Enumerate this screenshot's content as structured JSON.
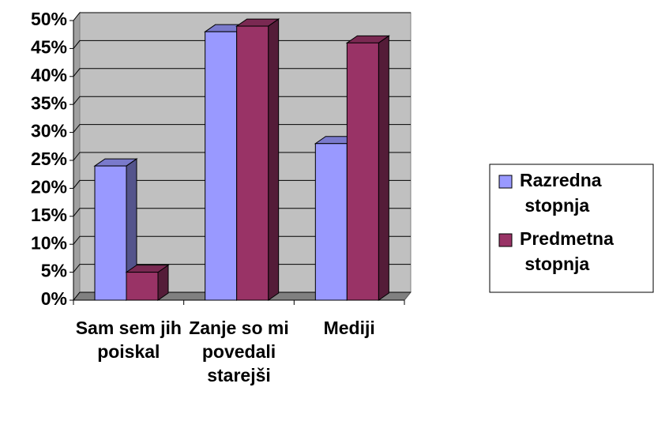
{
  "chart_data": {
    "type": "bar3d",
    "categories": [
      "Sam sem jih poiskal",
      "Zanje so mi povedali starejši",
      "Mediji"
    ],
    "series": [
      {
        "name": "Razredna stopnja",
        "color": "#9999ff",
        "values": [
          24,
          48,
          28
        ]
      },
      {
        "name": "Predmetna stopnja",
        "color": "#993366",
        "values": [
          5,
          49,
          46
        ]
      }
    ],
    "ylim": [
      0,
      50
    ],
    "yticks": [
      {
        "value": 0,
        "label": "0%"
      },
      {
        "value": 5,
        "label": "5%"
      },
      {
        "value": 10,
        "label": "10%"
      },
      {
        "value": 15,
        "label": "15%"
      },
      {
        "value": 20,
        "label": "20%"
      },
      {
        "value": 25,
        "label": "25%"
      },
      {
        "value": 30,
        "label": "30%"
      },
      {
        "value": 35,
        "label": "35%"
      },
      {
        "value": 40,
        "label": "40%"
      },
      {
        "value": 45,
        "label": "45%"
      },
      {
        "value": 50,
        "label": "50%"
      }
    ],
    "grid": true,
    "legend": "right"
  }
}
